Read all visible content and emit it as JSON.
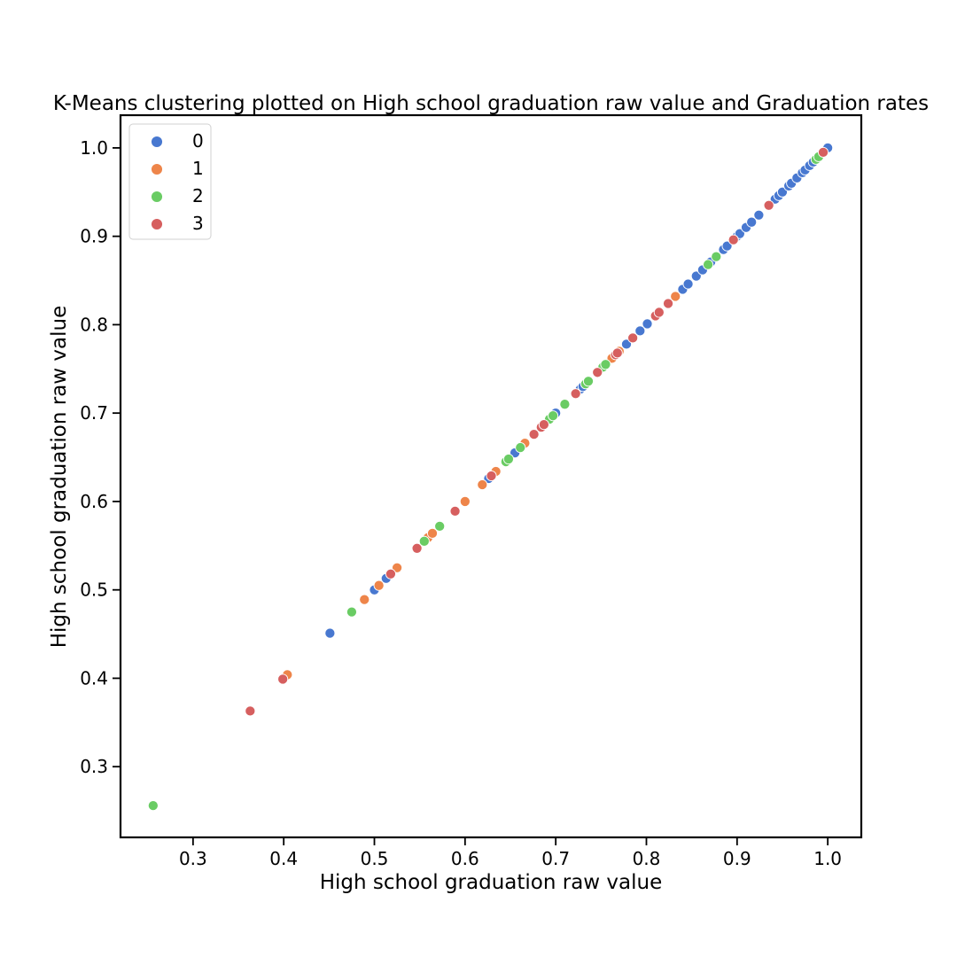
{
  "chart_data": {
    "type": "scatter",
    "title": "K-Means clustering plotted on High school graduation raw value and Graduation rates",
    "xlabel": "High school graduation raw value",
    "ylabel": "High school graduation raw value",
    "xlim": [
      0.22,
      1.037
    ],
    "ylim": [
      0.22,
      1.037
    ],
    "xticks": [
      "0.3",
      "0.4",
      "0.5",
      "0.6",
      "0.7",
      "0.8",
      "0.9",
      "1.0"
    ],
    "yticks": [
      "0.3",
      "0.4",
      "0.5",
      "0.6",
      "0.7",
      "0.8",
      "0.9",
      "1.0"
    ],
    "grid": false,
    "legend_position": "top-left",
    "series": [
      {
        "name": "0",
        "color": "#4878d0",
        "points": [
          [
            0.451,
            0.451
          ],
          [
            0.5,
            0.5
          ],
          [
            0.513,
            0.513
          ],
          [
            0.626,
            0.626
          ],
          [
            0.655,
            0.655
          ],
          [
            0.7,
            0.7
          ],
          [
            0.727,
            0.727
          ],
          [
            0.73,
            0.73
          ],
          [
            0.778,
            0.778
          ],
          [
            0.793,
            0.793
          ],
          [
            0.801,
            0.801
          ],
          [
            0.84,
            0.84
          ],
          [
            0.846,
            0.846
          ],
          [
            0.855,
            0.855
          ],
          [
            0.862,
            0.862
          ],
          [
            0.871,
            0.871
          ],
          [
            0.885,
            0.885
          ],
          [
            0.889,
            0.889
          ],
          [
            0.9,
            0.9
          ],
          [
            0.903,
            0.903
          ],
          [
            0.91,
            0.91
          ],
          [
            0.916,
            0.916
          ],
          [
            0.924,
            0.924
          ],
          [
            0.935,
            0.935
          ],
          [
            0.942,
            0.942
          ],
          [
            0.946,
            0.946
          ],
          [
            0.95,
            0.95
          ],
          [
            0.957,
            0.957
          ],
          [
            0.96,
            0.96
          ],
          [
            0.966,
            0.966
          ],
          [
            0.972,
            0.972
          ],
          [
            0.975,
            0.975
          ],
          [
            0.98,
            0.98
          ],
          [
            0.984,
            0.984
          ],
          [
            1.0,
            1.0
          ]
        ]
      },
      {
        "name": "1",
        "color": "#ee854a",
        "points": [
          [
            0.404,
            0.404
          ],
          [
            0.489,
            0.489
          ],
          [
            0.505,
            0.505
          ],
          [
            0.525,
            0.525
          ],
          [
            0.559,
            0.559
          ],
          [
            0.564,
            0.564
          ],
          [
            0.6,
            0.6
          ],
          [
            0.619,
            0.619
          ],
          [
            0.634,
            0.634
          ],
          [
            0.666,
            0.666
          ],
          [
            0.762,
            0.762
          ],
          [
            0.77,
            0.77
          ],
          [
            0.832,
            0.832
          ]
        ]
      },
      {
        "name": "2",
        "color": "#6acc64",
        "points": [
          [
            0.256,
            0.256
          ],
          [
            0.475,
            0.475
          ],
          [
            0.555,
            0.555
          ],
          [
            0.572,
            0.572
          ],
          [
            0.645,
            0.645
          ],
          [
            0.648,
            0.648
          ],
          [
            0.661,
            0.661
          ],
          [
            0.693,
            0.693
          ],
          [
            0.697,
            0.697
          ],
          [
            0.71,
            0.71
          ],
          [
            0.733,
            0.733
          ],
          [
            0.736,
            0.736
          ],
          [
            0.752,
            0.752
          ],
          [
            0.755,
            0.755
          ],
          [
            0.868,
            0.868
          ],
          [
            0.877,
            0.877
          ],
          [
            0.987,
            0.987
          ],
          [
            0.99,
            0.99
          ]
        ]
      },
      {
        "name": "3",
        "color": "#d65f5f",
        "points": [
          [
            0.363,
            0.363
          ],
          [
            0.399,
            0.399
          ],
          [
            0.518,
            0.518
          ],
          [
            0.547,
            0.547
          ],
          [
            0.589,
            0.589
          ],
          [
            0.629,
            0.629
          ],
          [
            0.676,
            0.676
          ],
          [
            0.684,
            0.684
          ],
          [
            0.687,
            0.687
          ],
          [
            0.722,
            0.722
          ],
          [
            0.746,
            0.746
          ],
          [
            0.766,
            0.766
          ],
          [
            0.768,
            0.768
          ],
          [
            0.785,
            0.785
          ],
          [
            0.81,
            0.81
          ],
          [
            0.814,
            0.814
          ],
          [
            0.824,
            0.824
          ],
          [
            0.896,
            0.896
          ],
          [
            0.935,
            0.935
          ],
          [
            0.995,
            0.995
          ]
        ]
      }
    ]
  }
}
